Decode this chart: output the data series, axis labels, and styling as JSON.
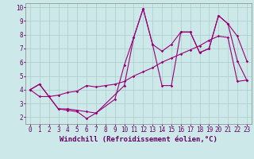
{
  "xlabel": "Windchill (Refroidissement éolien,°C)",
  "bg_color": "#cce8e8",
  "grid_color": "#aacccc",
  "line_color": "#990077",
  "xlim": [
    -0.5,
    23.5
  ],
  "ylim": [
    1.5,
    10.3
  ],
  "yticks": [
    2,
    3,
    4,
    5,
    6,
    7,
    8,
    9,
    10
  ],
  "xticks": [
    0,
    1,
    2,
    3,
    4,
    5,
    6,
    7,
    8,
    9,
    10,
    11,
    12,
    13,
    14,
    15,
    16,
    17,
    18,
    19,
    20,
    21,
    22,
    23
  ],
  "series1_x": [
    0,
    1,
    3,
    4,
    5,
    6,
    7,
    10,
    11,
    12,
    13,
    14,
    15,
    16,
    17,
    18,
    19,
    20,
    21,
    22,
    23
  ],
  "series1_y": [
    4.0,
    4.4,
    2.6,
    2.5,
    2.4,
    1.9,
    2.3,
    4.3,
    7.8,
    9.9,
    7.3,
    4.3,
    4.3,
    8.2,
    8.2,
    6.7,
    7.0,
    9.4,
    8.8,
    7.9,
    6.1
  ],
  "series2_x": [
    0,
    1,
    2,
    3,
    4,
    5,
    6,
    7,
    9,
    10,
    11,
    12,
    13,
    14,
    15,
    16,
    17,
    18,
    19,
    20,
    21,
    22,
    23
  ],
  "series2_y": [
    4.0,
    3.5,
    3.5,
    2.6,
    2.6,
    2.5,
    2.4,
    2.3,
    3.3,
    5.8,
    7.8,
    9.9,
    7.3,
    6.8,
    7.3,
    8.2,
    8.2,
    6.7,
    7.0,
    9.4,
    8.8,
    6.1,
    4.7
  ],
  "series3_x": [
    0,
    1,
    2,
    3,
    4,
    5,
    6,
    7,
    8,
    9,
    10,
    11,
    12,
    13,
    14,
    15,
    16,
    17,
    18,
    19,
    20,
    21,
    22,
    23
  ],
  "series3_y": [
    4.0,
    4.4,
    3.5,
    3.6,
    3.8,
    3.9,
    4.3,
    4.2,
    4.3,
    4.4,
    4.6,
    5.0,
    5.3,
    5.6,
    6.0,
    6.3,
    6.6,
    6.9,
    7.2,
    7.6,
    7.9,
    7.8,
    4.6,
    4.7
  ],
  "marker": "D",
  "markersize": 1.8,
  "linewidth": 0.8,
  "tick_fontsize": 5.5,
  "xlabel_fontsize": 6.5
}
